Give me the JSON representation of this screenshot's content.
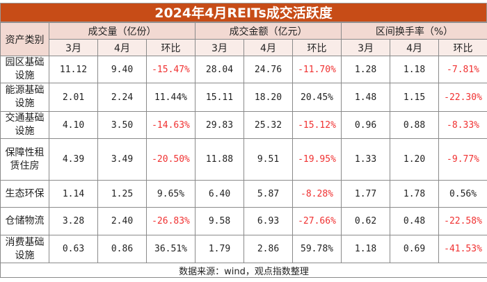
{
  "title": "2024年4月REITs成交活跃度",
  "header": {
    "category": "资产类别",
    "groups": [
      "成交量（亿份）",
      "成交金额（亿元）",
      "区间换手率（%）"
    ],
    "sub": [
      "3月",
      "4月",
      "环比"
    ]
  },
  "rows": [
    {
      "name": "园区基础设施",
      "v": [
        "11.12",
        "9.40",
        "-15.47%",
        "28.04",
        "24.76",
        "-11.70%",
        "1.28",
        "1.18",
        "-7.81%"
      ]
    },
    {
      "name": "能源基础设施",
      "v": [
        "2.01",
        "2.24",
        "11.44%",
        "15.11",
        "18.20",
        "20.45%",
        "1.48",
        "1.15",
        "-22.30%"
      ]
    },
    {
      "name": "交通基础设施",
      "v": [
        "4.10",
        "3.50",
        "-14.63%",
        "29.83",
        "25.32",
        "-15.12%",
        "0.96",
        "0.88",
        "-8.33%"
      ]
    },
    {
      "name": "保障性租赁住房",
      "v": [
        "4.39",
        "3.49",
        "-20.50%",
        "11.88",
        "9.51",
        "-19.95%",
        "1.33",
        "1.20",
        "-9.77%"
      ]
    },
    {
      "name": "生态环保",
      "v": [
        "1.14",
        "1.25",
        "9.65%",
        "6.40",
        "5.87",
        "-8.28%",
        "1.77",
        "1.78",
        "0.56%"
      ]
    },
    {
      "name": "仓储物流",
      "v": [
        "3.28",
        "2.40",
        "-26.83%",
        "9.58",
        "6.93",
        "-27.66%",
        "0.62",
        "0.48",
        "-22.58%"
      ]
    },
    {
      "name": "消费基础设施",
      "v": [
        "0.63",
        "0.86",
        "36.51%",
        "1.79",
        "2.86",
        "59.78%",
        "1.18",
        "0.69",
        "-41.53%"
      ]
    }
  ],
  "footer": "数据来源：wind，观点指数整理",
  "colors": {
    "title_bg": "#C74C17",
    "negative": "#F03030"
  }
}
